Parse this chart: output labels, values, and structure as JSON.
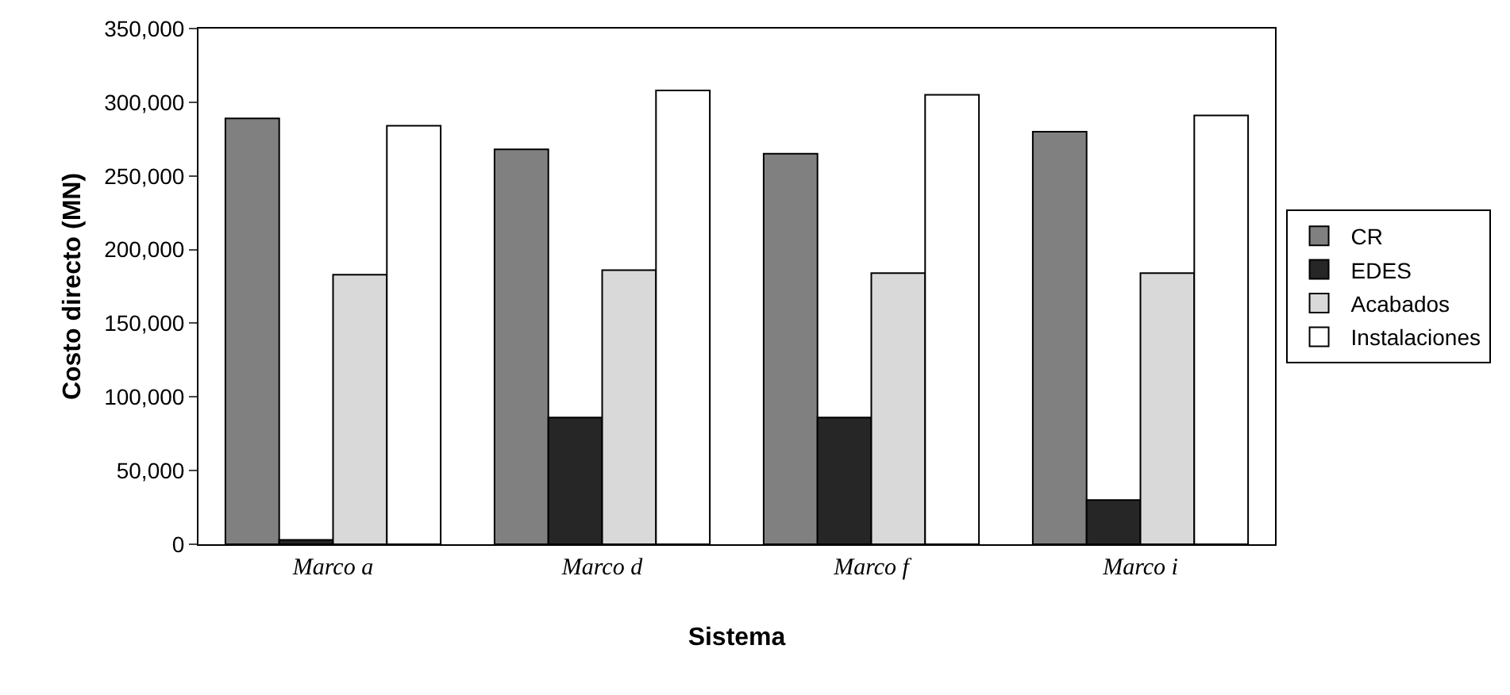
{
  "chart_data": {
    "type": "bar",
    "xlabel": "Sistema",
    "ylabel": "Costo directo (MN)",
    "categories": [
      "Marco a",
      "Marco d",
      "Marco f",
      "Marco i"
    ],
    "series": [
      {
        "name": "CR",
        "color": "#808080",
        "values": [
          289000,
          268000,
          265000,
          280000
        ]
      },
      {
        "name": "EDES",
        "color": "#262626",
        "values": [
          3000,
          86000,
          86000,
          30000
        ]
      },
      {
        "name": "Acabados",
        "color": "#d9d9d9",
        "values": [
          183000,
          186000,
          184000,
          184000
        ]
      },
      {
        "name": "Instalaciones",
        "color": "#ffffff",
        "values": [
          284000,
          308000,
          305000,
          291000
        ]
      }
    ],
    "ylim": [
      0,
      350000
    ],
    "yticks": [
      {
        "value": 0,
        "label": "0"
      },
      {
        "value": 50000,
        "label": "50,000"
      },
      {
        "value": 100000,
        "label": "100,000"
      },
      {
        "value": 150000,
        "label": "150,000"
      },
      {
        "value": 200000,
        "label": "200,000"
      },
      {
        "value": 250000,
        "label": "250,000"
      },
      {
        "value": 300000,
        "label": "300,000"
      },
      {
        "value": 350000,
        "label": "350,000"
      }
    ],
    "grid": false,
    "legend": "right"
  }
}
